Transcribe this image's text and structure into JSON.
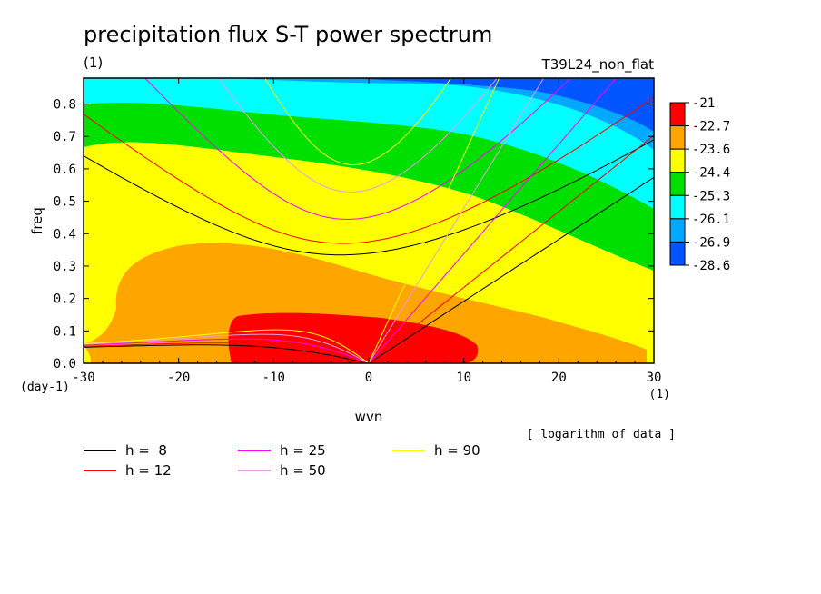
{
  "chart_data": {
    "type": "contour",
    "title": "precipitation flux S-T power spectrum",
    "subtitle_left": "(1)",
    "subtitle_right": "T39L24_non_flat",
    "xlabel": "wvn",
    "ylabel": "freq",
    "x_unit": "(1)",
    "y_unit": "(day-1)",
    "xlim": [
      -30,
      30
    ],
    "ylim": [
      0,
      0.88
    ],
    "xticks": [
      -30,
      -20,
      -10,
      0,
      10,
      20,
      30
    ],
    "xtick_labels": [
      "-30",
      "-20",
      "-10",
      "0",
      "10",
      "20",
      "30"
    ],
    "yticks": [
      0.0,
      0.1,
      0.2,
      0.3,
      0.4,
      0.5,
      0.6,
      0.7,
      0.8
    ],
    "ytick_labels": [
      "0.0",
      "0.1",
      "0.2",
      "0.3",
      "0.4",
      "0.5",
      "0.6",
      "0.7",
      "0.8"
    ],
    "colorbar": {
      "labels": [
        "-21",
        "-22.7",
        "-23.6",
        "-24.4",
        "-25.3",
        "-26.1",
        "-26.9",
        "-28.6"
      ],
      "colors": [
        "#ff0000",
        "#ffa500",
        "#ffff00",
        "#00e000",
        "#00ffff",
        "#00a8ff",
        "#0055ff"
      ],
      "note": "[ logarithm of data ]"
    },
    "dispersion_legend": [
      {
        "label": "h =  8",
        "color": "#000000"
      },
      {
        "label": "h = 12",
        "color": "#ff0000"
      },
      {
        "label": "h = 25",
        "color": "#ff00ff"
      },
      {
        "label": "h = 50",
        "color": "#e0a0e0"
      },
      {
        "label": "h = 90",
        "color": "#ffff00"
      }
    ],
    "equivalent_depths_m": [
      8,
      12,
      25,
      50,
      90
    ]
  }
}
